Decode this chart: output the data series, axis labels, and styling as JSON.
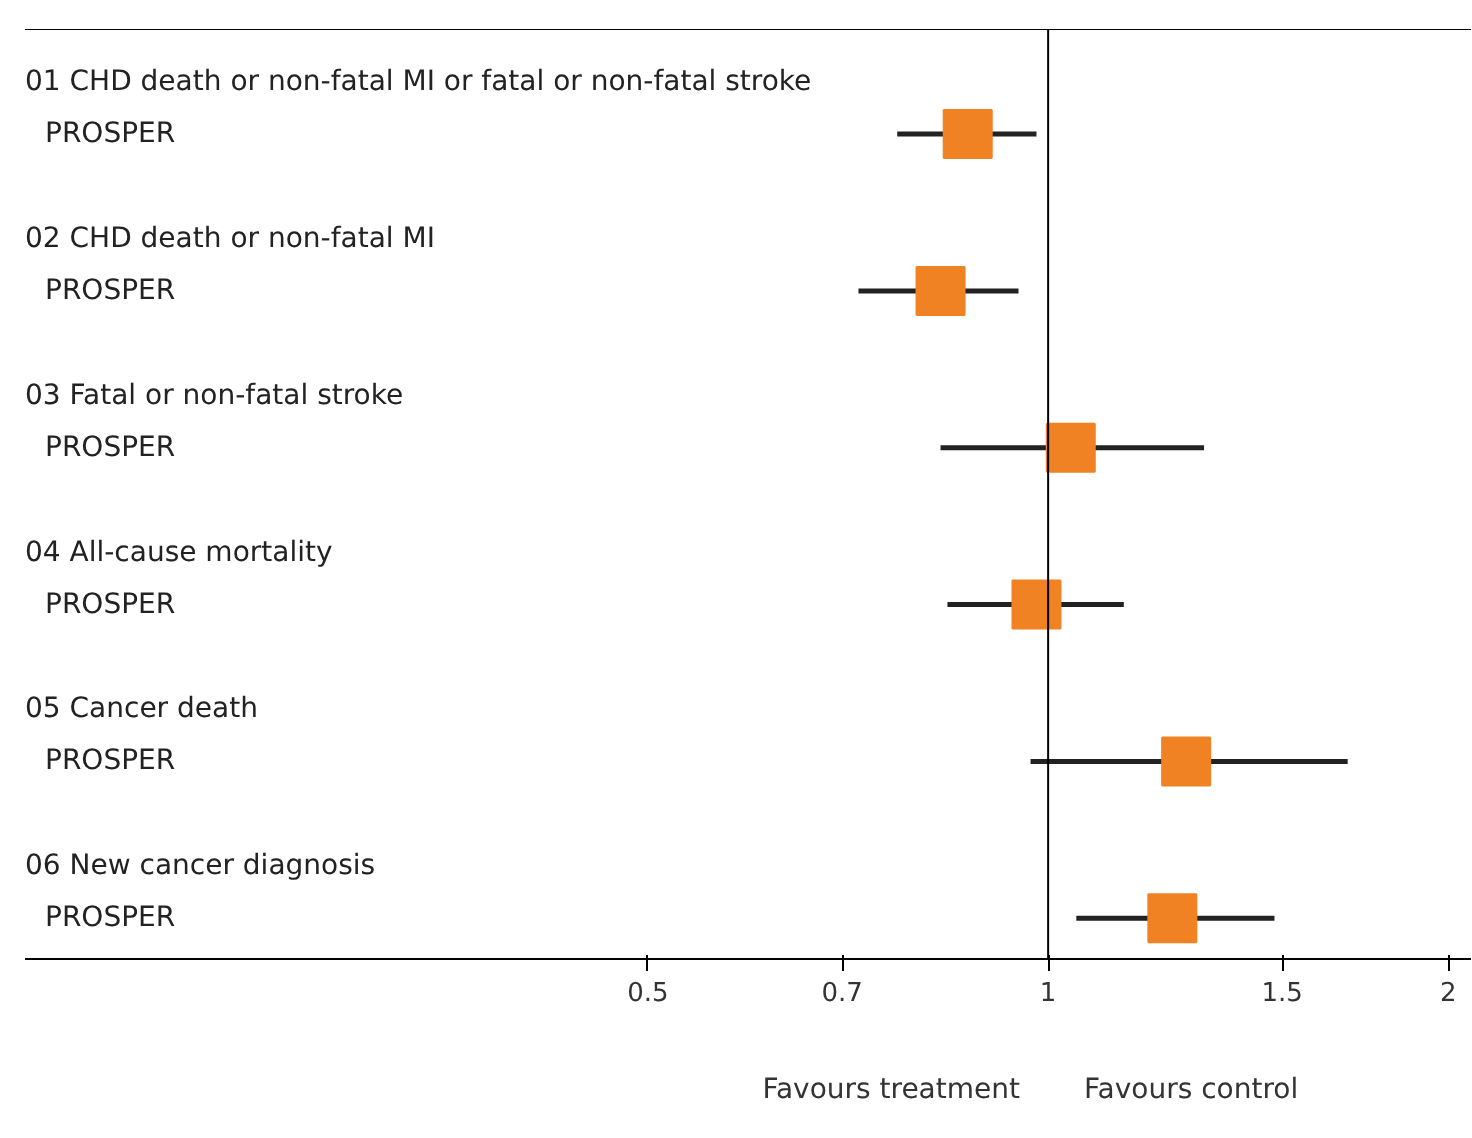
{
  "chart_data": {
    "type": "scatter",
    "orientation": "horizontal",
    "log": "x",
    "marker": "square",
    "categories": [
      "01 CHD death or non-fatal MI or fatal or non-fatal stroke\nPROSPER",
      "02 CHD death or non-fatal MI\nPROSPER",
      "03 Fatal or non-fatal stroke\nPROSPER",
      "04 All-cause mortality\nPROSPER",
      "05 Cancer death\nPROSPER",
      "06 New cancer diagnosis\nPROSPER"
    ],
    "series": [
      {
        "color": "#f08223",
        "values": [
          0.87,
          0.83,
          1.04,
          0.98,
          1.27,
          1.24
        ],
        "errors": [
          [
            0.77,
            0.98
          ],
          [
            0.72,
            0.95
          ],
          [
            0.83,
            1.31
          ],
          [
            0.84,
            1.14
          ],
          [
            0.97,
            1.68
          ],
          [
            1.05,
            1.48
          ]
        ]
      }
    ],
    "xlim": [
      0.17,
      2.08
    ],
    "xticks": [
      0.5,
      0.7,
      1,
      1.5,
      2
    ],
    "ref_lines": [
      {
        "axis": "x",
        "value": 1,
        "label": null,
        "color": "#000000"
      }
    ],
    "annotations": [
      "Favours treatment",
      "Favours control"
    ],
    "grid": false
  }
}
